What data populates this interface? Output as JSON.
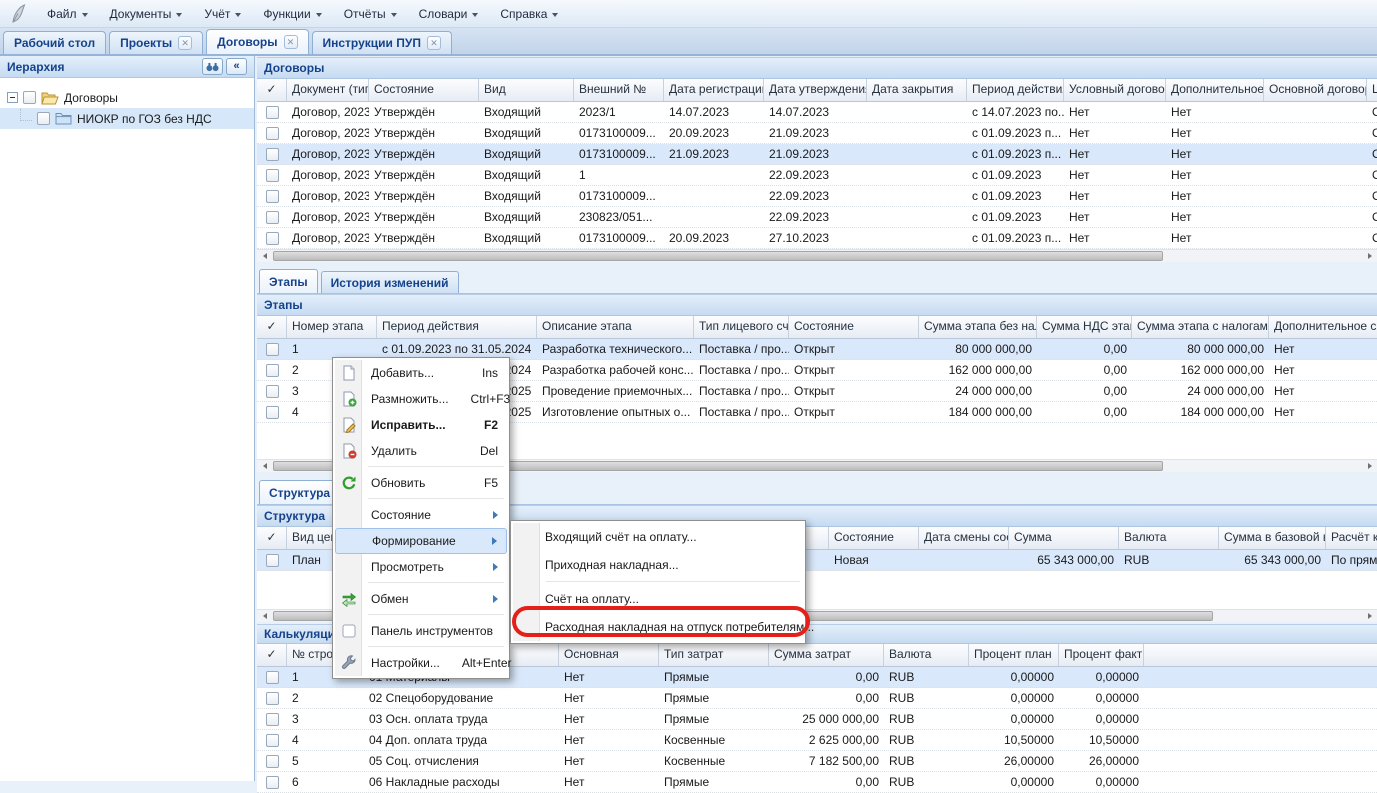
{
  "menubar": {
    "items": [
      "Файл",
      "Документы",
      "Учёт",
      "Функции",
      "Отчёты",
      "Словари",
      "Справка"
    ]
  },
  "tabs": {
    "items": [
      {
        "label": "Рабочий стол",
        "closable": false,
        "active": false
      },
      {
        "label": "Проекты",
        "closable": true,
        "active": false
      },
      {
        "label": "Договоры",
        "closable": true,
        "active": true
      },
      {
        "label": "Инструкции ПУП",
        "closable": true,
        "active": false
      }
    ]
  },
  "sidebar": {
    "title": "Иерархия",
    "collapse_glyph": "«",
    "tree": [
      {
        "label": "Договоры",
        "level": 0,
        "folder": "open",
        "selected": false
      },
      {
        "label": "НИОКР по ГОЗ без НДС",
        "level": 1,
        "folder": "closed",
        "selected": true
      }
    ]
  },
  "contracts": {
    "title": "Договоры",
    "check_glyph": "✓",
    "headers": [
      "Документ (тип, №",
      "Состояние",
      "Вид",
      "Внешний №",
      "Дата регистрации.",
      "Дата утверждения",
      "Дата закрытия",
      "Период действия..",
      "Условный договор",
      "Дополнительное с",
      "Основной договор",
      "Ц"
    ],
    "rows": [
      [
        "Договор, 2023/...",
        "Утверждён",
        "Входящий",
        "2023/1",
        "14.07.2023",
        "14.07.2023",
        "",
        "с 14.07.2023 по...",
        "Нет",
        "Нет",
        "",
        "О"
      ],
      [
        "Договор, 2023/...",
        "Утверждён",
        "Входящий",
        "0173100009...",
        "20.09.2023",
        "21.09.2023",
        "",
        "с 01.09.2023 п...",
        "Нет",
        "Нет",
        "",
        "О"
      ],
      [
        "Договор, 2023/...",
        "Утверждён",
        "Входящий",
        "0173100009...",
        "21.09.2023",
        "21.09.2023",
        "",
        "с 01.09.2023 п...",
        "Нет",
        "Нет",
        "",
        "О"
      ],
      [
        "Договор, 2023/...",
        "Утверждён",
        "Входящий",
        "1",
        "",
        "22.09.2023",
        "",
        "с 01.09.2023",
        "Нет",
        "Нет",
        "",
        "О"
      ],
      [
        "Договор, 2023/...",
        "Утверждён",
        "Входящий",
        "0173100009...",
        "",
        "22.09.2023",
        "",
        "с 01.09.2023",
        "Нет",
        "Нет",
        "",
        "О"
      ],
      [
        "Договор, 2023/...",
        "Утверждён",
        "Входящий",
        "230823/051...",
        "",
        "22.09.2023",
        "",
        "с 01.09.2023",
        "Нет",
        "Нет",
        "",
        "О"
      ],
      [
        "Договор, 2023/...",
        "Утверждён",
        "Входящий",
        "0173100009...",
        "20.09.2023",
        "27.10.2023",
        "",
        "с 01.09.2023 п...",
        "Нет",
        "Нет",
        "",
        "О"
      ]
    ]
  },
  "stages": {
    "tabs": [
      {
        "label": "Этапы",
        "active": true
      },
      {
        "label": "История изменений",
        "active": false
      }
    ],
    "title": "Этапы",
    "check_glyph": "✓",
    "headers": [
      "Номер этапа",
      "Период действия",
      "Описание этапа",
      "Тип лицевого счёт",
      "Состояние",
      "Сумма этапа без налогов",
      "Сумма НДС этапа",
      "Сумма этапа с налогами",
      "Дополнительное с"
    ],
    "rows": [
      [
        "1",
        "с 01.09.2023 по 31.05.2024",
        "Разработка технического...",
        "Поставка / про...",
        "Открыт",
        "80 000 000,00",
        "0,00",
        "80 000 000,00",
        "Нет"
      ],
      [
        "2",
        "с 01.06.2024 по 31.12.2024",
        "Разработка рабочей конс...",
        "Поставка / про...",
        "Открыт",
        "162 000 000,00",
        "0,00",
        "162 000 000,00",
        "Нет"
      ],
      [
        "3",
        "с 01.01.2025 по 30.06.2025",
        "Проведение приемочных...",
        "Поставка / про...",
        "Открыт",
        "24 000 000,00",
        "0,00",
        "24 000 000,00",
        "Нет"
      ],
      [
        "4",
        "с 01.07.2025 по 31.12.2025",
        "Изготовление опытных о...",
        "Поставка / про...",
        "Открыт",
        "184 000 000,00",
        "0,00",
        "184 000 000,00",
        "Нет"
      ]
    ]
  },
  "structure": {
    "tab": "Структура",
    "title": "Структура",
    "check_glyph": "✓",
    "headers": [
      "Вид цен",
      "",
      "Состояние",
      "Дата смены состоя",
      "Сумма",
      "Валюта",
      "Сумма в базовой в",
      "Расчёт ко"
    ],
    "rows": [
      [
        "План",
        "",
        "Новая",
        "",
        "65 343 000,00",
        "RUB",
        "65 343 000,00",
        "По прямы"
      ]
    ]
  },
  "calc": {
    "title": "Калькуляция",
    "check_glyph": "✓",
    "headers": [
      "№ строки",
      "",
      "Основная",
      "Тип затрат",
      "Сумма затрат",
      "Валюта",
      "Процент план",
      "Процент факт",
      ""
    ],
    "rows": [
      [
        "1",
        "01 Материалы",
        "Нет",
        "Прямые",
        "0,00",
        "RUB",
        "0,00000",
        "0,00000",
        ""
      ],
      [
        "2",
        "02 Спецоборудование",
        "Нет",
        "Прямые",
        "0,00",
        "RUB",
        "0,00000",
        "0,00000",
        ""
      ],
      [
        "3",
        "03 Осн. оплата труда",
        "Нет",
        "Прямые",
        "25 000 000,00",
        "RUB",
        "0,00000",
        "0,00000",
        ""
      ],
      [
        "4",
        "04 Доп. оплата труда",
        "Нет",
        "Косвенные",
        "2 625 000,00",
        "RUB",
        "10,50000",
        "10,50000",
        ""
      ],
      [
        "5",
        "05 Соц. отчисления",
        "Нет",
        "Косвенные",
        "7 182 500,00",
        "RUB",
        "26,00000",
        "26,00000",
        ""
      ],
      [
        "6",
        "06 Накладные расходы",
        "Нет",
        "Прямые",
        "0,00",
        "RUB",
        "0,00000",
        "0,00000",
        ""
      ]
    ]
  },
  "context_menu": {
    "items": [
      {
        "label": "Добавить...",
        "shortcut": "Ins",
        "icon": "page-icon"
      },
      {
        "label": "Размножить...",
        "shortcut": "Ctrl+F3",
        "icon": "page-add-icon"
      },
      {
        "label": "Исправить...",
        "shortcut": "F2",
        "icon": "page-edit-icon",
        "bold": true
      },
      {
        "label": "Удалить",
        "shortcut": "Del",
        "icon": "page-remove-icon",
        "sep": true
      },
      {
        "label": "Обновить",
        "shortcut": "F5",
        "icon": "refresh-icon",
        "sep": true
      },
      {
        "label": "Состояние",
        "arrow": true
      },
      {
        "label": "Формирование",
        "arrow": true,
        "highlighted": true
      },
      {
        "label": "Просмотреть",
        "arrow": true,
        "sep": true
      },
      {
        "label": "Обмен",
        "arrow": true,
        "icon": "exchange-icon",
        "sep": true
      },
      {
        "label": "Панель инструментов",
        "icon": "checkbox-icon",
        "sep": true
      },
      {
        "label": "Настройки...",
        "shortcut": "Alt+Enter",
        "icon": "wrench-icon"
      }
    ]
  },
  "submenu": {
    "items": [
      {
        "label": "Входящий счёт на оплату..."
      },
      {
        "label": "Приходная накладная...",
        "sep": true
      },
      {
        "label": "Счёт на оплату..."
      },
      {
        "label": "Расходная накладная на отпуск потребителям...",
        "annotated": true
      }
    ]
  },
  "annotation": {
    "color": "#e32119"
  },
  "colors": {
    "accent": "#15428b",
    "selection": "#d9e8fb"
  }
}
